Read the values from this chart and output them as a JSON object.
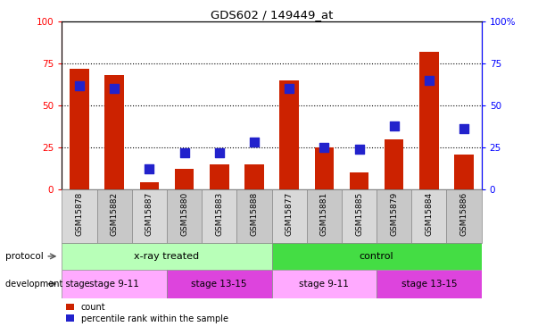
{
  "title": "GDS602 / 149449_at",
  "samples": [
    "GSM15878",
    "GSM15882",
    "GSM15887",
    "GSM15880",
    "GSM15883",
    "GSM15888",
    "GSM15877",
    "GSM15881",
    "GSM15885",
    "GSM15879",
    "GSM15884",
    "GSM15886"
  ],
  "count_values": [
    72,
    68,
    4,
    12,
    15,
    15,
    65,
    25,
    10,
    30,
    82,
    21
  ],
  "percentile_values": [
    62,
    60,
    12,
    22,
    22,
    28,
    60,
    25,
    24,
    38,
    65,
    36
  ],
  "protocol_groups": [
    {
      "label": "x-ray treated",
      "start": 0,
      "end": 6,
      "color": "#b8ffb8"
    },
    {
      "label": "control",
      "start": 6,
      "end": 12,
      "color": "#44dd44"
    }
  ],
  "stage_groups": [
    {
      "label": "stage 9-11",
      "start": 0,
      "end": 3,
      "color": "#ffaaff"
    },
    {
      "label": "stage 13-15",
      "start": 3,
      "end": 6,
      "color": "#dd44dd"
    },
    {
      "label": "stage 9-11",
      "start": 6,
      "end": 9,
      "color": "#ffaaff"
    },
    {
      "label": "stage 13-15",
      "start": 9,
      "end": 12,
      "color": "#dd44dd"
    }
  ],
  "bar_color": "#cc2200",
  "dot_color": "#2222cc",
  "grid_vals": [
    25,
    50,
    75
  ],
  "cell_color_odd": "#c8c8c8",
  "cell_color_even": "#d8d8d8"
}
